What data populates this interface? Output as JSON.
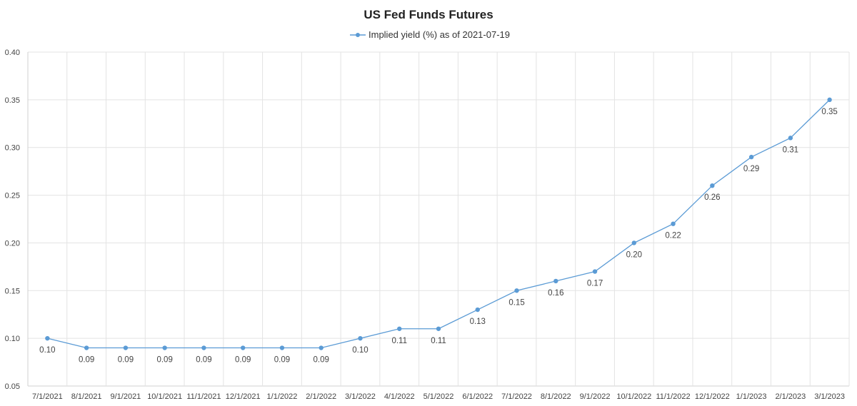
{
  "chart_data": {
    "type": "line",
    "title": "US Fed Funds Futures",
    "xlabel": "",
    "ylabel": "",
    "categories": [
      "7/1/2021",
      "8/1/2021",
      "9/1/2021",
      "10/1/2021",
      "11/1/2021",
      "12/1/2021",
      "1/1/2022",
      "2/1/2022",
      "3/1/2022",
      "4/1/2022",
      "5/1/2022",
      "6/1/2022",
      "7/1/2022",
      "8/1/2022",
      "9/1/2022",
      "10/1/2022",
      "11/1/2022",
      "12/1/2022",
      "1/1/2023",
      "2/1/2023",
      "3/1/2023"
    ],
    "series": [
      {
        "name": "Implied yield (%) as of 2021-07-19",
        "values": [
          0.1,
          0.09,
          0.09,
          0.09,
          0.09,
          0.09,
          0.09,
          0.09,
          0.1,
          0.11,
          0.11,
          0.13,
          0.15,
          0.16,
          0.17,
          0.2,
          0.22,
          0.26,
          0.29,
          0.31,
          0.35
        ],
        "labels": [
          "0.10",
          "0.09",
          "0.09",
          "0.09",
          "0.09",
          "0.09",
          "0.09",
          "0.09",
          "0.10",
          "0.11",
          "0.11",
          "0.13",
          "0.15",
          "0.16",
          "0.17",
          "0.20",
          "0.22",
          "0.26",
          "0.29",
          "0.31",
          "0.35"
        ],
        "color": "#5b9bd5"
      }
    ],
    "ylim": [
      0.05,
      0.4
    ],
    "yticks": [
      "0.05",
      "0.10",
      "0.15",
      "0.20",
      "0.25",
      "0.30",
      "0.35",
      "0.40"
    ],
    "grid": true,
    "legend": "top-center"
  }
}
